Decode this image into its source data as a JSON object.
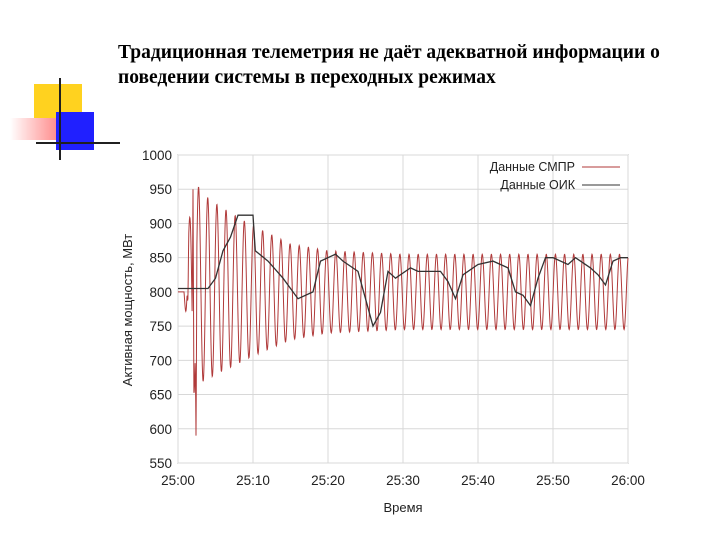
{
  "slide": {
    "title": "Традиционная телеметрия не даёт адекватной информации о поведении системы в переходных режимах",
    "accent_yellow": "#ffd21f",
    "accent_blue": "#2020ff",
    "accent_red": "#ff5050",
    "accent_line": "#202020"
  },
  "chart_data": {
    "type": "line",
    "xlabel": "Время",
    "ylabel": "Активная мощность, МВт",
    "ylim": [
      550,
      1000
    ],
    "yticks": [
      550,
      600,
      650,
      700,
      750,
      800,
      850,
      900,
      950,
      1000
    ],
    "ytick_labels": [
      "550",
      "600",
      "650",
      "700",
      "750",
      "800",
      "850",
      "900",
      "950",
      "1000"
    ],
    "xlim": [
      0,
      60
    ],
    "xticks": [
      0,
      10,
      20,
      30,
      40,
      50,
      60
    ],
    "xtick_labels": [
      "25:00",
      "25:10",
      "25:20",
      "25:30",
      "25:40",
      "25:50",
      "26:00"
    ],
    "grid": true,
    "legend_position": "top-right",
    "series": [
      {
        "name": "Данные СМПР",
        "color": "#b03a3a",
        "envelope": {
          "period_s": 1.22,
          "center": [
            [
              0,
              800
            ],
            [
              1,
              800
            ],
            [
              2,
              810
            ],
            [
              4,
              805
            ],
            [
              8,
              802
            ],
            [
              15,
              800
            ],
            [
              25,
              800
            ],
            [
              40,
              800
            ],
            [
              60,
              800
            ]
          ],
          "amplitude": [
            [
              0,
              0
            ],
            [
              0.8,
              0
            ],
            [
              1.2,
              60
            ],
            [
              2,
              160
            ],
            [
              3,
              140
            ],
            [
              5,
              125
            ],
            [
              10,
              95
            ],
            [
              15,
              70
            ],
            [
              20,
              60
            ],
            [
              30,
              55
            ],
            [
              60,
              55
            ]
          ],
          "spikes": [
            [
              1.3,
              780
            ],
            [
              2.0,
              950
            ],
            [
              2.4,
              590
            ]
          ]
        }
      },
      {
        "name": "Данные ОИК",
        "color": "#333333",
        "points": [
          [
            0,
            805
          ],
          [
            4,
            805
          ],
          [
            5,
            820
          ],
          [
            6,
            860
          ],
          [
            7,
            880
          ],
          [
            8,
            912
          ],
          [
            10,
            912
          ],
          [
            10.3,
            860
          ],
          [
            12,
            845
          ],
          [
            14,
            820
          ],
          [
            16,
            790
          ],
          [
            18,
            800
          ],
          [
            19,
            845
          ],
          [
            21,
            855
          ],
          [
            22,
            845
          ],
          [
            24,
            830
          ],
          [
            25,
            790
          ],
          [
            26,
            750
          ],
          [
            27,
            770
          ],
          [
            28,
            830
          ],
          [
            29,
            820
          ],
          [
            31,
            835
          ],
          [
            32,
            830
          ],
          [
            34,
            830
          ],
          [
            35,
            830
          ],
          [
            36,
            815
          ],
          [
            37,
            790
          ],
          [
            38,
            825
          ],
          [
            40,
            840
          ],
          [
            42,
            845
          ],
          [
            44,
            835
          ],
          [
            45,
            800
          ],
          [
            46,
            795
          ],
          [
            47,
            780
          ],
          [
            48,
            820
          ],
          [
            49,
            850
          ],
          [
            50,
            850
          ],
          [
            52,
            840
          ],
          [
            53,
            850
          ],
          [
            55,
            835
          ],
          [
            56,
            825
          ],
          [
            57,
            810
          ],
          [
            58,
            845
          ],
          [
            59,
            850
          ],
          [
            60,
            850
          ]
        ]
      }
    ]
  }
}
